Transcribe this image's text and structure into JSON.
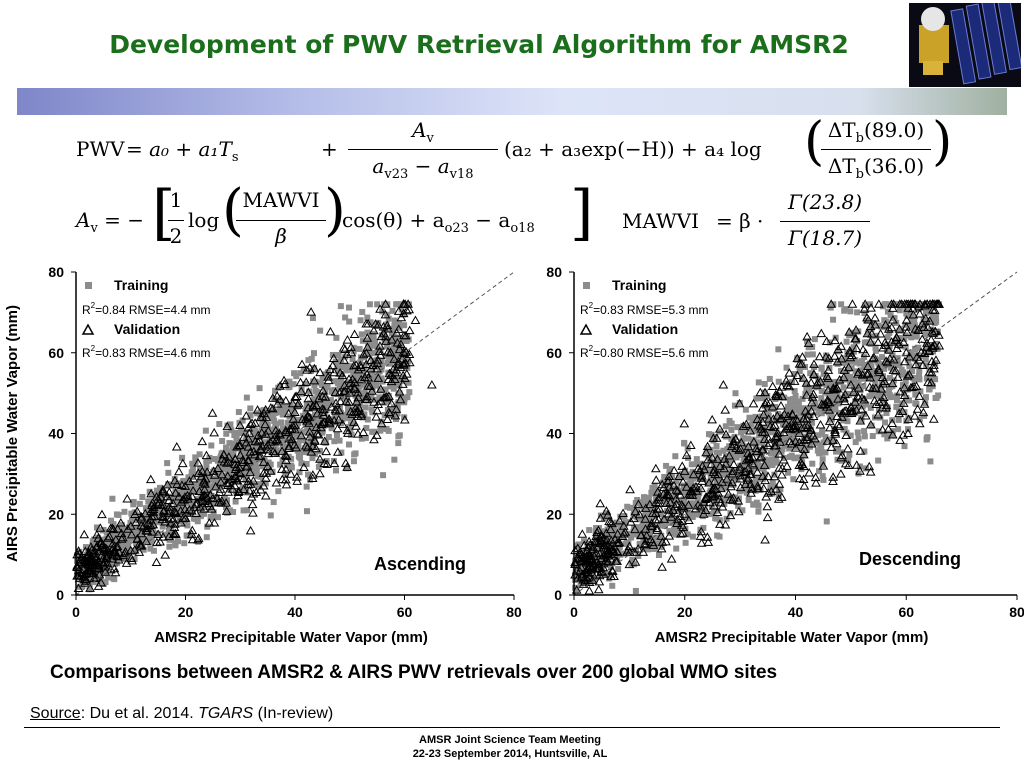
{
  "slide": {
    "title": "Development of PWV  Retrieval Algorithm for AMSR2",
    "caption": "Comparisons between AMSR2 & AIRS PWV retrievals over 200 global WMO sites",
    "source_label": "Source",
    "source_text": ": Du et al. 2014. ",
    "source_journal": "TGARS",
    "source_status": " (In-review)",
    "footer_line1": "AMSR Joint Science Team Meeting",
    "footer_line2": "22-23 September 2014, Huntsville, AL",
    "image_icon": "satellite-icon"
  },
  "colors": {
    "title": "#1b6e1b",
    "training": "#8c8c8c",
    "validation": "#000000"
  },
  "equations": {
    "pwv": {
      "lhs": "PWV",
      "num": "A",
      "num_sub": "v",
      "den_a": "a",
      "den_a_sub": "v23",
      "den_b": "a",
      "den_b_sub": "v18",
      "mid": "(a₂ + a₃exp(−H)) + a₄ log",
      "ratio_num": "ΔT",
      "ratio_num_sub": "b",
      "ratio_num_val": "(89.0)",
      "ratio_den": "ΔT",
      "ratio_den_sub": "b",
      "ratio_den_val": "(36.0)",
      "head": "= a₀ + a₁T",
      "head_sub": "s"
    },
    "av": {
      "lhs": "A",
      "lhs_sub": "v",
      "half_num": "1",
      "half_den": "2",
      "log": "log",
      "mawvi": "MAWVI",
      "beta": "β",
      "tail": "cos(θ) + a",
      "tail_sub1": "o23",
      "minus": "− a",
      "tail_sub2": "o18"
    },
    "mawvi": {
      "lhs": "MAWVI",
      "eq": "= β ·",
      "num": "Γ(23.8)",
      "den": "Γ(18.7)"
    }
  },
  "chart_data": [
    {
      "type": "scatter",
      "panel_label": "Ascending",
      "xlabel": "AMSR2 Precipitable Water Vapor (mm)",
      "ylabel": "AIRS Precipitable Water Vapor (mm)",
      "xlim": [
        0,
        80
      ],
      "ylim": [
        0,
        80
      ],
      "xticks": [
        0,
        20,
        40,
        60,
        80
      ],
      "yticks": [
        0,
        20,
        40,
        60,
        80
      ],
      "reference_line": "1:1 dashed",
      "series": [
        {
          "name": "Training",
          "marker": "square",
          "r2_label": "R",
          "r2_text": "=0.84   RMSE=4.4 mm",
          "n": 1400,
          "trend_start": [
            0,
            5.5
          ],
          "trend_end": [
            55,
            55
          ],
          "spread": 4.4
        },
        {
          "name": "Validation",
          "marker": "triangle",
          "r2_label": "R",
          "r2_text": "=0.83 RMSE=4.6 mm",
          "n": 700,
          "trend_start": [
            0,
            5.5
          ],
          "trend_end": [
            55,
            55
          ],
          "spread": 4.6
        }
      ],
      "sample_points": [
        [
          0.5,
          6
        ],
        [
          5,
          8
        ],
        [
          10,
          11
        ],
        [
          15,
          15
        ],
        [
          20,
          19
        ],
        [
          25,
          24
        ],
        [
          30,
          30
        ],
        [
          35,
          36
        ],
        [
          40,
          42
        ],
        [
          45,
          46
        ],
        [
          50,
          50
        ],
        [
          55,
          56
        ],
        [
          62,
          68
        ],
        [
          65,
          52
        ]
      ]
    },
    {
      "type": "scatter",
      "panel_label": "Descending",
      "xlabel": "AMSR2 Precipitable Water Vapor (mm)",
      "ylabel": "",
      "xlim": [
        0,
        80
      ],
      "ylim": [
        0,
        80
      ],
      "xticks": [
        0,
        20,
        40,
        60,
        80
      ],
      "yticks": [
        0,
        20,
        40,
        60,
        80
      ],
      "reference_line": "1:1 dashed",
      "series": [
        {
          "name": "Training",
          "marker": "square",
          "r2_label": "R",
          "r2_text": "=0.83   RMSE=5.3 mm",
          "n": 1400,
          "trend_start": [
            0,
            6
          ],
          "trend_end": [
            60,
            60
          ],
          "spread": 5.3
        },
        {
          "name": "Validation",
          "marker": "triangle",
          "r2_label": "R",
          "r2_text": "=0.80 RMSE=5.6 mm",
          "n": 800,
          "trend_start": [
            0,
            6
          ],
          "trend_end": [
            60,
            60
          ],
          "spread": 5.6
        }
      ],
      "sample_points": [
        [
          0.5,
          6
        ],
        [
          5,
          9
        ],
        [
          10,
          12
        ],
        [
          15,
          16
        ],
        [
          20,
          20
        ],
        [
          25,
          25
        ],
        [
          30,
          31
        ],
        [
          35,
          37
        ],
        [
          40,
          42
        ],
        [
          45,
          47
        ],
        [
          50,
          52
        ],
        [
          55,
          56
        ],
        [
          60,
          60
        ],
        [
          65,
          56
        ]
      ]
    }
  ]
}
